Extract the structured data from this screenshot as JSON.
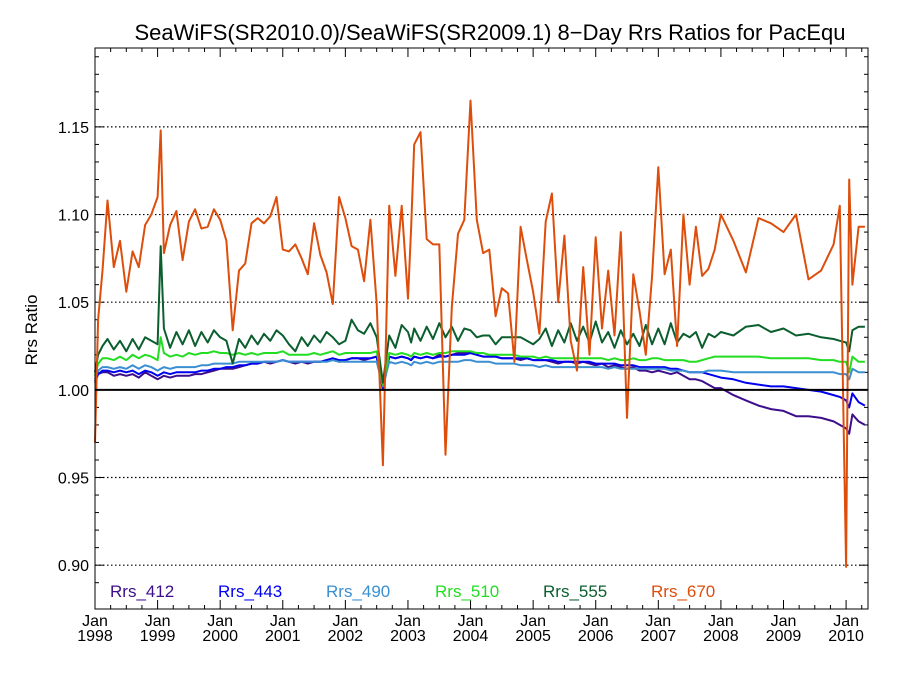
{
  "chart_data": {
    "type": "line",
    "title": "SeaWiFS(SR2010.0)/SeaWiFS(SR2009.1) 8−Day Rrs Ratios for PacEqu",
    "ylabel": "Rrs Ratio",
    "xlabel": "",
    "xlim": [
      1998.0,
      2010.35
    ],
    "ylim": [
      0.875,
      1.195
    ],
    "y_ticks": [
      "0.90",
      "0.95",
      "1.00",
      "1.05",
      "1.10",
      "1.15"
    ],
    "y_tick_values": [
      0.9,
      0.95,
      1.0,
      1.05,
      1.1,
      1.15
    ],
    "x_tick_months": [
      "Jan",
      "Jan",
      "Jan",
      "Jan",
      "Jan",
      "Jan",
      "Jan",
      "Jan",
      "Jan",
      "Jan",
      "Jan",
      "Jan",
      "Jan"
    ],
    "x_tick_years": [
      "1998",
      "1999",
      "2000",
      "2001",
      "2002",
      "2003",
      "2004",
      "2005",
      "2006",
      "2007",
      "2008",
      "2009",
      "2010"
    ],
    "x_tick_values": [
      1998,
      1999,
      2000,
      2001,
      2002,
      2003,
      2004,
      2005,
      2006,
      2007,
      2008,
      2009,
      2010
    ],
    "reference_line": 1.0,
    "grid": "dotted horizontal",
    "legend_placement": "bottom",
    "x": [
      1998.0,
      1998.05,
      1998.12,
      1998.2,
      1998.3,
      1998.4,
      1998.5,
      1998.6,
      1998.7,
      1998.8,
      1998.9,
      1999.0,
      1999.05,
      1999.1,
      1999.2,
      1999.3,
      1999.4,
      1999.5,
      1999.6,
      1999.7,
      1999.8,
      1999.9,
      2000.0,
      2000.1,
      2000.2,
      2000.3,
      2000.4,
      2000.5,
      2000.6,
      2000.7,
      2000.8,
      2000.9,
      2001.0,
      2001.1,
      2001.2,
      2001.3,
      2001.4,
      2001.5,
      2001.6,
      2001.7,
      2001.8,
      2001.9,
      2002.0,
      2002.1,
      2002.2,
      2002.3,
      2002.4,
      2002.5,
      2002.6,
      2002.7,
      2002.8,
      2002.9,
      2003.0,
      2003.05,
      2003.1,
      2003.2,
      2003.3,
      2003.4,
      2003.5,
      2003.6,
      2003.7,
      2003.8,
      2003.9,
      2004.0,
      2004.1,
      2004.2,
      2004.3,
      2004.4,
      2004.5,
      2004.6,
      2004.7,
      2004.8,
      2004.9,
      2005.0,
      2005.1,
      2005.2,
      2005.3,
      2005.4,
      2005.5,
      2005.6,
      2005.7,
      2005.8,
      2005.9,
      2006.0,
      2006.1,
      2006.2,
      2006.3,
      2006.4,
      2006.5,
      2006.6,
      2006.7,
      2006.8,
      2006.9,
      2007.0,
      2007.1,
      2007.2,
      2007.3,
      2007.4,
      2007.5,
      2007.6,
      2007.7,
      2007.8,
      2007.9,
      2008.0,
      2008.2,
      2008.4,
      2008.6,
      2008.8,
      2009.0,
      2009.2,
      2009.4,
      2009.6,
      2009.8,
      2009.9,
      2010.0,
      2010.05,
      2010.1,
      2010.2,
      2010.3
    ],
    "series": [
      {
        "name": "Rrs_412",
        "color": "#3d0e8c",
        "values": [
          1.004,
          1.009,
          1.01,
          1.01,
          1.008,
          1.009,
          1.008,
          1.009,
          1.007,
          1.01,
          1.008,
          1.006,
          1.007,
          1.008,
          1.007,
          1.008,
          1.008,
          1.008,
          1.009,
          1.009,
          1.01,
          1.011,
          1.012,
          1.012,
          1.012,
          1.013,
          1.014,
          1.015,
          1.015,
          1.016,
          1.015,
          1.016,
          1.017,
          1.016,
          1.015,
          1.016,
          1.015,
          1.016,
          1.016,
          1.017,
          1.018,
          1.016,
          1.017,
          1.018,
          1.018,
          1.017,
          1.018,
          1.019,
          1.0,
          1.019,
          1.018,
          1.019,
          1.018,
          1.017,
          1.019,
          1.018,
          1.019,
          1.018,
          1.02,
          1.019,
          1.02,
          1.021,
          1.021,
          1.021,
          1.02,
          1.019,
          1.019,
          1.019,
          1.018,
          1.018,
          1.018,
          1.017,
          1.018,
          1.017,
          1.017,
          1.017,
          1.016,
          1.015,
          1.016,
          1.016,
          1.015,
          1.016,
          1.015,
          1.014,
          1.015,
          1.013,
          1.014,
          1.013,
          1.012,
          1.013,
          1.011,
          1.011,
          1.01,
          1.011,
          1.01,
          1.009,
          1.01,
          1.008,
          1.006,
          1.006,
          1.005,
          1.003,
          1.001,
          1.001,
          0.997,
          0.994,
          0.991,
          0.989,
          0.988,
          0.985,
          0.985,
          0.984,
          0.982,
          0.98,
          0.978,
          0.975,
          0.986,
          0.982,
          0.98
        ]
      },
      {
        "name": "Rrs_443",
        "color": "#0000ee",
        "values": [
          1.005,
          1.009,
          1.011,
          1.011,
          1.01,
          1.011,
          1.01,
          1.011,
          1.009,
          1.011,
          1.01,
          1.008,
          1.009,
          1.01,
          1.009,
          1.01,
          1.01,
          1.01,
          1.01,
          1.011,
          1.011,
          1.012,
          1.012,
          1.013,
          1.013,
          1.014,
          1.014,
          1.015,
          1.015,
          1.016,
          1.016,
          1.016,
          1.017,
          1.016,
          1.016,
          1.016,
          1.016,
          1.016,
          1.016,
          1.017,
          1.018,
          1.017,
          1.017,
          1.018,
          1.018,
          1.018,
          1.018,
          1.019,
          1.001,
          1.019,
          1.018,
          1.019,
          1.018,
          1.017,
          1.019,
          1.018,
          1.019,
          1.018,
          1.019,
          1.019,
          1.02,
          1.02,
          1.02,
          1.021,
          1.02,
          1.019,
          1.019,
          1.019,
          1.018,
          1.018,
          1.018,
          1.018,
          1.018,
          1.017,
          1.017,
          1.017,
          1.017,
          1.016,
          1.016,
          1.016,
          1.016,
          1.016,
          1.016,
          1.015,
          1.015,
          1.015,
          1.015,
          1.014,
          1.014,
          1.014,
          1.013,
          1.013,
          1.013,
          1.013,
          1.013,
          1.012,
          1.012,
          1.011,
          1.01,
          1.01,
          1.01,
          1.009,
          1.008,
          1.007,
          1.006,
          1.004,
          1.003,
          1.002,
          1.002,
          1.001,
          1.0,
          0.999,
          0.997,
          0.996,
          0.994,
          0.99,
          0.998,
          0.993,
          0.991
        ]
      },
      {
        "name": "Rrs_490",
        "color": "#3b8fd0",
        "values": [
          1.006,
          1.011,
          1.013,
          1.013,
          1.012,
          1.013,
          1.012,
          1.014,
          1.012,
          1.014,
          1.013,
          1.011,
          1.012,
          1.013,
          1.012,
          1.013,
          1.013,
          1.013,
          1.013,
          1.014,
          1.014,
          1.015,
          1.015,
          1.015,
          1.015,
          1.016,
          1.016,
          1.016,
          1.016,
          1.016,
          1.016,
          1.016,
          1.017,
          1.016,
          1.016,
          1.016,
          1.016,
          1.016,
          1.016,
          1.016,
          1.017,
          1.016,
          1.016,
          1.016,
          1.016,
          1.016,
          1.016,
          1.016,
          1.002,
          1.016,
          1.015,
          1.016,
          1.015,
          1.014,
          1.016,
          1.015,
          1.016,
          1.015,
          1.016,
          1.016,
          1.016,
          1.016,
          1.017,
          1.017,
          1.016,
          1.016,
          1.016,
          1.015,
          1.015,
          1.015,
          1.015,
          1.014,
          1.014,
          1.014,
          1.013,
          1.014,
          1.013,
          1.013,
          1.013,
          1.013,
          1.013,
          1.013,
          1.013,
          1.013,
          1.013,
          1.012,
          1.013,
          1.012,
          1.012,
          1.012,
          1.012,
          1.012,
          1.012,
          1.012,
          1.012,
          1.011,
          1.011,
          1.011,
          1.01,
          1.01,
          1.01,
          1.011,
          1.011,
          1.011,
          1.01,
          1.01,
          1.01,
          1.01,
          1.01,
          1.01,
          1.01,
          1.01,
          1.01,
          1.009,
          1.009,
          1.006,
          1.012,
          1.01,
          1.01
        ]
      },
      {
        "name": "Rrs_510",
        "color": "#22dd22",
        "values": [
          1.008,
          1.015,
          1.018,
          1.018,
          1.017,
          1.019,
          1.017,
          1.02,
          1.018,
          1.02,
          1.019,
          1.017,
          1.03,
          1.021,
          1.019,
          1.02,
          1.019,
          1.021,
          1.02,
          1.021,
          1.021,
          1.022,
          1.021,
          1.021,
          1.02,
          1.021,
          1.02,
          1.021,
          1.02,
          1.021,
          1.021,
          1.021,
          1.022,
          1.02,
          1.02,
          1.02,
          1.02,
          1.021,
          1.02,
          1.021,
          1.022,
          1.02,
          1.021,
          1.021,
          1.021,
          1.021,
          1.021,
          1.022,
          1.003,
          1.021,
          1.02,
          1.021,
          1.02,
          1.019,
          1.021,
          1.02,
          1.021,
          1.02,
          1.021,
          1.021,
          1.022,
          1.022,
          1.022,
          1.022,
          1.021,
          1.021,
          1.02,
          1.02,
          1.02,
          1.02,
          1.02,
          1.019,
          1.019,
          1.019,
          1.018,
          1.019,
          1.018,
          1.018,
          1.018,
          1.018,
          1.018,
          1.018,
          1.018,
          1.018,
          1.018,
          1.017,
          1.018,
          1.017,
          1.017,
          1.018,
          1.017,
          1.017,
          1.018,
          1.018,
          1.017,
          1.017,
          1.017,
          1.017,
          1.016,
          1.016,
          1.017,
          1.018,
          1.019,
          1.019,
          1.019,
          1.019,
          1.019,
          1.018,
          1.018,
          1.018,
          1.018,
          1.017,
          1.017,
          1.016,
          1.016,
          1.01,
          1.019,
          1.016,
          1.016
        ]
      },
      {
        "name": "Rrs_555",
        "color": "#0b5e2e",
        "values": [
          1.01,
          1.02,
          1.025,
          1.029,
          1.023,
          1.028,
          1.022,
          1.029,
          1.023,
          1.03,
          1.028,
          1.026,
          1.082,
          1.035,
          1.024,
          1.033,
          1.026,
          1.034,
          1.025,
          1.033,
          1.027,
          1.034,
          1.03,
          1.028,
          1.015,
          1.029,
          1.024,
          1.031,
          1.026,
          1.032,
          1.028,
          1.034,
          1.031,
          1.026,
          1.022,
          1.03,
          1.025,
          1.031,
          1.027,
          1.033,
          1.03,
          1.026,
          1.028,
          1.04,
          1.034,
          1.032,
          1.038,
          1.03,
          1.004,
          1.031,
          1.024,
          1.037,
          1.033,
          1.027,
          1.035,
          1.028,
          1.036,
          1.029,
          1.038,
          1.03,
          1.036,
          1.028,
          1.035,
          1.034,
          1.03,
          1.031,
          1.031,
          1.026,
          1.03,
          1.03,
          1.03,
          1.03,
          1.028,
          1.026,
          1.029,
          1.035,
          1.025,
          1.034,
          1.027,
          1.038,
          1.028,
          1.036,
          1.027,
          1.039,
          1.027,
          1.033,
          1.024,
          1.034,
          1.026,
          1.032,
          1.025,
          1.037,
          1.026,
          1.035,
          1.026,
          1.038,
          1.027,
          1.032,
          1.03,
          1.033,
          1.024,
          1.032,
          1.03,
          1.033,
          1.031,
          1.036,
          1.037,
          1.033,
          1.035,
          1.031,
          1.032,
          1.03,
          1.029,
          1.028,
          1.027,
          1.022,
          1.034,
          1.036,
          1.036
        ]
      },
      {
        "name": "Rrs_670",
        "color": "#dd4e0c",
        "values": [
          0.97,
          1.04,
          1.068,
          1.108,
          1.07,
          1.085,
          1.056,
          1.079,
          1.07,
          1.094,
          1.1,
          1.11,
          1.148,
          1.078,
          1.094,
          1.102,
          1.074,
          1.096,
          1.103,
          1.092,
          1.093,
          1.103,
          1.097,
          1.085,
          1.034,
          1.068,
          1.072,
          1.095,
          1.098,
          1.095,
          1.099,
          1.11,
          1.08,
          1.079,
          1.083,
          1.075,
          1.066,
          1.095,
          1.077,
          1.067,
          1.049,
          1.11,
          1.098,
          1.082,
          1.08,
          1.062,
          1.097,
          1.049,
          0.957,
          1.105,
          1.065,
          1.105,
          1.052,
          1.092,
          1.14,
          1.147,
          1.086,
          1.083,
          1.083,
          0.963,
          1.047,
          1.089,
          1.097,
          1.165,
          1.097,
          1.078,
          1.08,
          1.042,
          1.058,
          1.055,
          1.016,
          1.093,
          1.074,
          1.056,
          1.032,
          1.096,
          1.112,
          1.05,
          1.088,
          1.028,
          1.011,
          1.07,
          1.02,
          1.087,
          1.035,
          1.068,
          1.031,
          1.09,
          0.984,
          1.066,
          1.045,
          1.02,
          1.065,
          1.127,
          1.066,
          1.08,
          1.025,
          1.1,
          1.06,
          1.093,
          1.065,
          1.069,
          1.08,
          1.1,
          1.085,
          1.067,
          1.098,
          1.095,
          1.09,
          1.1,
          1.063,
          1.068,
          1.083,
          1.105,
          0.899,
          1.12,
          1.06,
          1.093,
          1.093
        ]
      }
    ]
  }
}
